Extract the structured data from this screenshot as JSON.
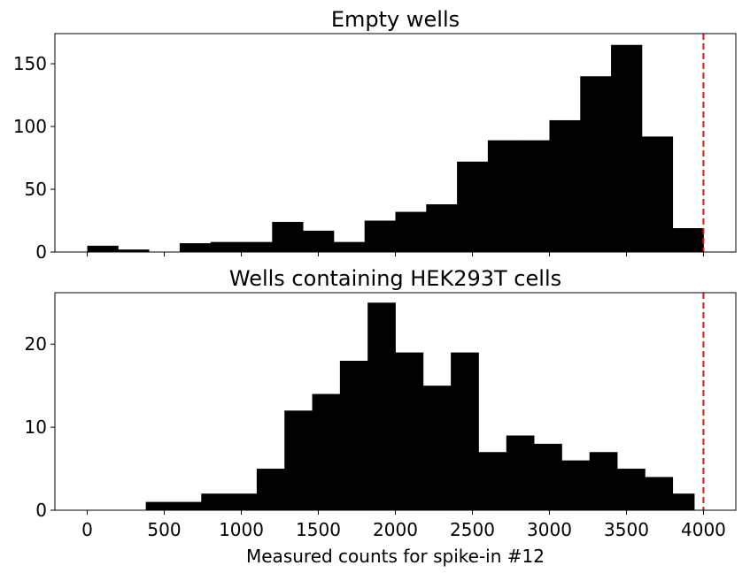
{
  "chart_data": [
    {
      "type": "bar",
      "title": "Empty wells",
      "xlabel": "",
      "ylabel": "",
      "xlim": [
        -210,
        4210
      ],
      "ylim": [
        0,
        174
      ],
      "yticks": [
        0,
        50,
        100,
        150
      ],
      "xticks": [
        0,
        500,
        1000,
        1500,
        2000,
        2500,
        3000,
        3500,
        4000
      ],
      "show_xtick_labels": false,
      "threshold": 4000,
      "bins": [
        {
          "start": 0,
          "end": 200,
          "count": 5
        },
        {
          "start": 200,
          "end": 400,
          "count": 2
        },
        {
          "start": 400,
          "end": 600,
          "count": 0
        },
        {
          "start": 600,
          "end": 800,
          "count": 7
        },
        {
          "start": 800,
          "end": 1000,
          "count": 8
        },
        {
          "start": 1000,
          "end": 1200,
          "count": 8
        },
        {
          "start": 1200,
          "end": 1400,
          "count": 24
        },
        {
          "start": 1400,
          "end": 1600,
          "count": 17
        },
        {
          "start": 1600,
          "end": 1800,
          "count": 8
        },
        {
          "start": 1800,
          "end": 2000,
          "count": 25
        },
        {
          "start": 2000,
          "end": 2200,
          "count": 32
        },
        {
          "start": 2200,
          "end": 2400,
          "count": 38
        },
        {
          "start": 2400,
          "end": 2600,
          "count": 72
        },
        {
          "start": 2600,
          "end": 2800,
          "count": 89
        },
        {
          "start": 2800,
          "end": 3000,
          "count": 89
        },
        {
          "start": 3000,
          "end": 3200,
          "count": 105
        },
        {
          "start": 3200,
          "end": 3400,
          "count": 140
        },
        {
          "start": 3400,
          "end": 3600,
          "count": 165
        },
        {
          "start": 3600,
          "end": 3800,
          "count": 92
        },
        {
          "start": 3800,
          "end": 4000,
          "count": 19
        }
      ]
    },
    {
      "type": "bar",
      "title": "Wells containing HEK293T cells",
      "xlabel": "Measured counts for spike-in #12",
      "ylabel": "",
      "xlim": [
        -210,
        4210
      ],
      "ylim": [
        0,
        26.2
      ],
      "yticks": [
        0,
        10,
        20
      ],
      "xticks": [
        0,
        500,
        1000,
        1500,
        2000,
        2500,
        3000,
        3500,
        4000
      ],
      "show_xtick_labels": true,
      "threshold": 4000,
      "bins": [
        {
          "start": 380,
          "end": 560,
          "count": 1
        },
        {
          "start": 560,
          "end": 740,
          "count": 1
        },
        {
          "start": 740,
          "end": 920,
          "count": 2
        },
        {
          "start": 920,
          "end": 1100,
          "count": 2
        },
        {
          "start": 1100,
          "end": 1280,
          "count": 5
        },
        {
          "start": 1280,
          "end": 1460,
          "count": 12
        },
        {
          "start": 1460,
          "end": 1640,
          "count": 14
        },
        {
          "start": 1640,
          "end": 1820,
          "count": 18
        },
        {
          "start": 1820,
          "end": 2000,
          "count": 25
        },
        {
          "start": 2000,
          "end": 2180,
          "count": 19
        },
        {
          "start": 2180,
          "end": 2360,
          "count": 15
        },
        {
          "start": 2360,
          "end": 2540,
          "count": 19
        },
        {
          "start": 2540,
          "end": 2720,
          "count": 7
        },
        {
          "start": 2720,
          "end": 2900,
          "count": 9
        },
        {
          "start": 2900,
          "end": 3080,
          "count": 8
        },
        {
          "start": 3080,
          "end": 3260,
          "count": 6
        },
        {
          "start": 3260,
          "end": 3440,
          "count": 7
        },
        {
          "start": 3440,
          "end": 3620,
          "count": 5
        },
        {
          "start": 3620,
          "end": 3800,
          "count": 4
        },
        {
          "start": 3800,
          "end": 3940,
          "count": 2
        }
      ]
    }
  ],
  "colors": {
    "bars": "#000000",
    "threshold_line": "#e8141a",
    "axes": "#000000"
  }
}
